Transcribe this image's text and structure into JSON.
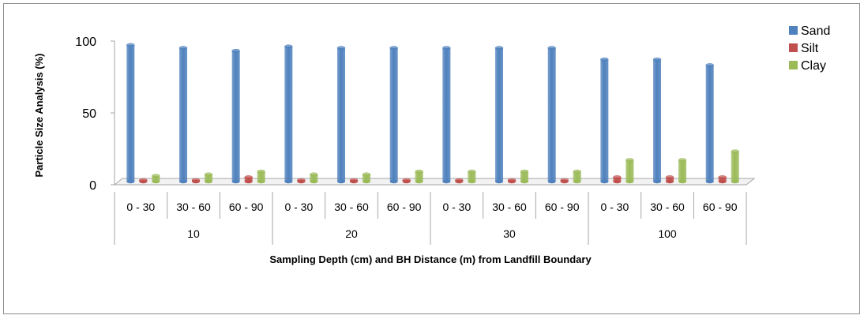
{
  "chart_data": {
    "type": "bar",
    "ylabel": "Particle Size Analysis (%)",
    "xlabel": "Sampling Depth (cm) and BH Distance (m) from Landfill Boundary",
    "ylim": [
      0,
      100
    ],
    "yticks": [
      0,
      50,
      100
    ],
    "categories": [
      "0 - 30",
      "30 - 60",
      "60 - 90",
      "0 - 30",
      "30 - 60",
      "60 - 90",
      "0 - 30",
      "30 - 60",
      "60 - 90",
      "0 - 30",
      "30 - 60",
      "60 - 90"
    ],
    "groups": [
      {
        "label": "10",
        "span": 3
      },
      {
        "label": "20",
        "span": 3
      },
      {
        "label": "30",
        "span": 3
      },
      {
        "label": "100",
        "span": 3
      }
    ],
    "series": [
      {
        "name": "Sand",
        "color": "#4f81bd",
        "values": [
          95,
          93,
          91,
          94,
          93,
          93,
          93,
          93,
          93,
          85,
          85,
          81
        ]
      },
      {
        "name": "Silt",
        "color": "#c0504d",
        "values": [
          1,
          1,
          3,
          1,
          1,
          1,
          1,
          1,
          1,
          3,
          3,
          3
        ]
      },
      {
        "name": "Clay",
        "color": "#9bbb59",
        "values": [
          4,
          5,
          7,
          5,
          5,
          7,
          7,
          7,
          7,
          15,
          15,
          21
        ]
      }
    ],
    "legend_position": "top-right",
    "grid": false,
    "style": "3d-cylinder"
  }
}
